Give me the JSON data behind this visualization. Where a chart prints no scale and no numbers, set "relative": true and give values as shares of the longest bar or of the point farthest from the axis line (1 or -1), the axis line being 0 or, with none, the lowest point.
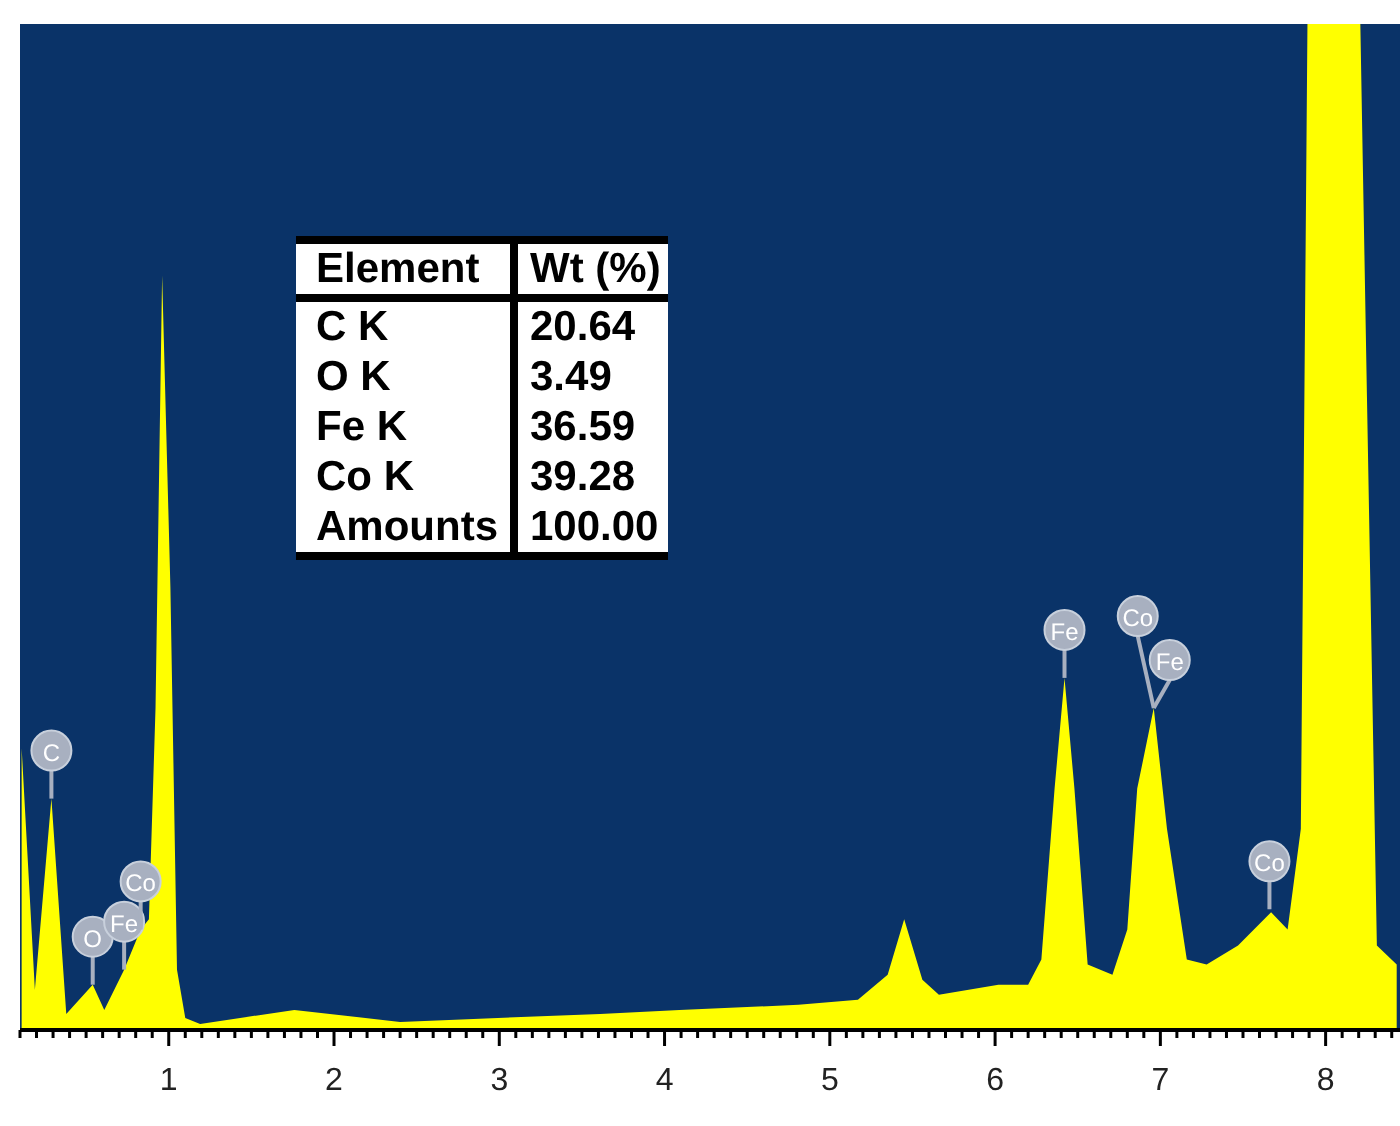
{
  "chart_data": {
    "type": "area",
    "relative": true,
    "x": [
      0.11,
      0.19,
      0.29,
      0.38,
      0.54,
      0.61,
      0.73,
      0.83,
      0.88,
      0.92,
      0.96,
      1.01,
      1.05,
      1.1,
      1.19,
      1.76,
      2.4,
      3.61,
      4.09,
      4.81,
      5.17,
      5.35,
      5.45,
      5.56,
      5.66,
      6.02,
      6.2,
      6.28,
      6.36,
      6.42,
      6.48,
      6.56,
      6.71,
      6.8,
      6.86,
      6.96,
      7.04,
      7.16,
      7.28,
      7.47,
      7.67,
      7.77,
      7.85,
      7.89,
      8.21,
      8.25,
      8.31,
      8.43
    ],
    "series": [
      {
        "color": "#ffff00",
        "values": [
          0.28,
          0.04,
          0.23,
          0.016,
          0.045,
          0.02,
          0.06,
          0.1,
          0.11,
          0.32,
          0.75,
          0.44,
          0.06,
          0.012,
          0.006,
          0.02,
          0.008,
          0.016,
          0.02,
          0.025,
          0.03,
          0.055,
          0.11,
          0.05,
          0.035,
          0.045,
          0.045,
          0.07,
          0.24,
          0.35,
          0.24,
          0.065,
          0.055,
          0.1,
          0.24,
          0.32,
          0.2,
          0.07,
          0.065,
          0.084,
          0.117,
          0.1,
          0.2,
          1,
          1,
          0.63,
          0.084,
          0.065
        ]
      }
    ],
    "xlim": [
      0.1,
      8.45
    ],
    "xticks": [
      {
        "value": 0.1,
        "label": null
      },
      {
        "value": 0.2,
        "label": null
      },
      {
        "value": 0.3,
        "label": null
      },
      {
        "value": 0.4,
        "label": null
      },
      {
        "value": 0.5,
        "label": null
      },
      {
        "value": 0.6,
        "label": null
      },
      {
        "value": 0.7,
        "label": null
      },
      {
        "value": 0.8,
        "label": null
      },
      {
        "value": 0.9,
        "label": null
      },
      1,
      {
        "value": 1.1,
        "label": null
      },
      {
        "value": 1.2,
        "label": null
      },
      {
        "value": 1.3,
        "label": null
      },
      {
        "value": 1.4,
        "label": null
      },
      {
        "value": 1.5,
        "label": null
      },
      {
        "value": 1.6,
        "label": null
      },
      {
        "value": 1.7,
        "label": null
      },
      {
        "value": 1.8,
        "label": null
      },
      {
        "value": 1.9,
        "label": null
      },
      2,
      {
        "value": 2.1,
        "label": null
      },
      {
        "value": 2.2,
        "label": null
      },
      {
        "value": 2.3,
        "label": null
      },
      {
        "value": 2.4,
        "label": null
      },
      {
        "value": 2.5,
        "label": null
      },
      {
        "value": 2.6,
        "label": null
      },
      {
        "value": 2.7,
        "label": null
      },
      {
        "value": 2.8,
        "label": null
      },
      {
        "value": 2.9,
        "label": null
      },
      3,
      {
        "value": 3.1,
        "label": null
      },
      {
        "value": 3.2,
        "label": null
      },
      {
        "value": 3.3,
        "label": null
      },
      {
        "value": 3.4,
        "label": null
      },
      {
        "value": 3.5,
        "label": null
      },
      {
        "value": 3.6,
        "label": null
      },
      {
        "value": 3.7,
        "label": null
      },
      {
        "value": 3.8,
        "label": null
      },
      {
        "value": 3.9,
        "label": null
      },
      4,
      {
        "value": 4.1,
        "label": null
      },
      {
        "value": 4.2,
        "label": null
      },
      {
        "value": 4.3,
        "label": null
      },
      {
        "value": 4.4,
        "label": null
      },
      {
        "value": 4.5,
        "label": null
      },
      {
        "value": 4.6,
        "label": null
      },
      {
        "value": 4.7,
        "label": null
      },
      {
        "value": 4.8,
        "label": null
      },
      {
        "value": 4.9,
        "label": null
      },
      5,
      {
        "value": 5.1,
        "label": null
      },
      {
        "value": 5.2,
        "label": null
      },
      {
        "value": 5.3,
        "label": null
      },
      {
        "value": 5.4,
        "label": null
      },
      {
        "value": 5.5,
        "label": null
      },
      {
        "value": 5.6,
        "label": null
      },
      {
        "value": 5.7,
        "label": null
      },
      {
        "value": 5.8,
        "label": null
      },
      {
        "value": 5.9,
        "label": null
      },
      6,
      {
        "value": 6.1,
        "label": null
      },
      {
        "value": 6.2,
        "label": null
      },
      {
        "value": 6.3,
        "label": null
      },
      {
        "value": 6.4,
        "label": null
      },
      {
        "value": 6.5,
        "label": null
      },
      {
        "value": 6.6,
        "label": null
      },
      {
        "value": 6.7,
        "label": null
      },
      {
        "value": 6.8,
        "label": null
      },
      {
        "value": 6.9,
        "label": null
      },
      7,
      {
        "value": 7.1,
        "label": null
      },
      {
        "value": 7.2,
        "label": null
      },
      {
        "value": 7.3,
        "label": null
      },
      {
        "value": 7.4,
        "label": null
      },
      {
        "value": 7.5,
        "label": null
      },
      {
        "value": 7.6,
        "label": null
      },
      {
        "value": 7.7,
        "label": null
      },
      {
        "value": 7.8,
        "label": null
      },
      {
        "value": 7.9,
        "label": null
      },
      8,
      {
        "value": 8.1,
        "label": null
      },
      {
        "value": 8.2,
        "label": null
      },
      {
        "value": 8.3,
        "label": null
      },
      {
        "value": 8.4,
        "label": null
      }
    ],
    "annotations": [
      {
        "text": "C",
        "x": 0.29,
        "y": 0.23
      },
      {
        "text": "O",
        "x": 0.54,
        "y": 0.045
      },
      {
        "text": "Fe",
        "x": 0.73,
        "y": 0.06
      },
      {
        "text": "Co",
        "x": 0.83,
        "y": 0.1
      },
      {
        "text": "Fe",
        "x": 6.42,
        "y": 0.35
      },
      {
        "text": "Co",
        "x": 6.96,
        "y": 0.32
      },
      {
        "text": "Fe",
        "x": 6.96,
        "y": 0.32
      },
      {
        "text": "Co",
        "x": 7.66,
        "y": 0.12
      },
      "Element",
      "Wt (%)",
      "C K",
      "20.64",
      "O K",
      "3.49",
      "Fe K",
      "36.59",
      "Co K",
      "39.28",
      "Amounts",
      "100.00"
    ]
  }
}
